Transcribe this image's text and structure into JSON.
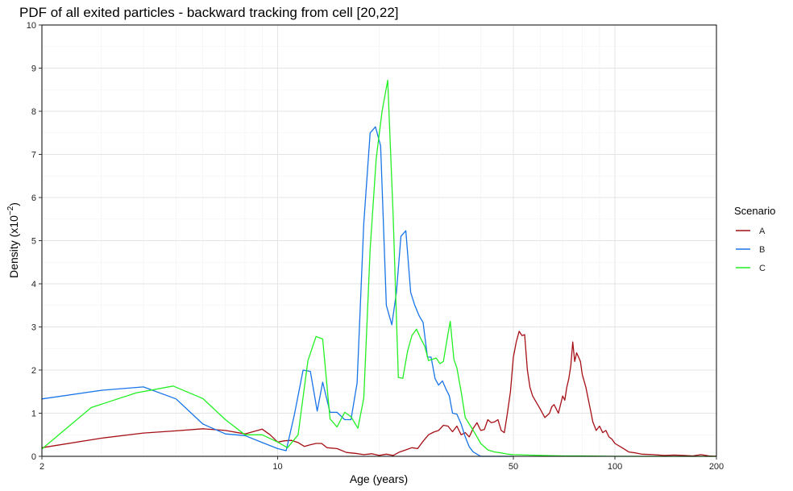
{
  "chart_data": {
    "type": "line",
    "title": "PDF of all exited particles - backward tracking from cell [20,22]",
    "xlabel": "Age (years)",
    "ylabel_main": "Density (x10",
    "ylabel_sup": "−2",
    "ylabel_end": ")",
    "x_scale": "log",
    "xlim": [
      2,
      200
    ],
    "ylim": [
      0,
      10
    ],
    "x_ticks": [
      2,
      10,
      50,
      100,
      200
    ],
    "x_minor": [
      3,
      4,
      5,
      6,
      7,
      8,
      9,
      20,
      30,
      40,
      60,
      70,
      80,
      90
    ],
    "y_ticks": [
      0,
      1,
      2,
      3,
      4,
      5,
      6,
      7,
      8,
      9,
      10
    ],
    "grid": true,
    "legend": {
      "title": "Scenario",
      "position": "right"
    },
    "series": [
      {
        "name": "A",
        "color": "#a50f15",
        "x": [
          2,
          3,
          4,
          5,
          6,
          7,
          8,
          9,
          9.5,
          10,
          10.5,
          11,
          11.5,
          12,
          12.5,
          13,
          13.5,
          14,
          15,
          16,
          17,
          18,
          19,
          20,
          21,
          22,
          23,
          24,
          25,
          26,
          27,
          28,
          29,
          30,
          31,
          32,
          33,
          34,
          35,
          36,
          37,
          38,
          39,
          40,
          41,
          42,
          43,
          44,
          45,
          46,
          47,
          48,
          49,
          50,
          51,
          52,
          53,
          54,
          55,
          56,
          57,
          58,
          59,
          60,
          62,
          64,
          65,
          66,
          68,
          70,
          71,
          72,
          73,
          74,
          75,
          76,
          77,
          78,
          79,
          80,
          82,
          84,
          85,
          86,
          88,
          90,
          92,
          94,
          96,
          98,
          100,
          105,
          110,
          115,
          120,
          130,
          140,
          150,
          160,
          170,
          180,
          190,
          200
        ],
        "y": [
          0.2,
          0.42,
          0.54,
          0.59,
          0.64,
          0.6,
          0.52,
          0.63,
          0.5,
          0.33,
          0.36,
          0.37,
          0.32,
          0.23,
          0.27,
          0.3,
          0.3,
          0.2,
          0.18,
          0.09,
          0.07,
          0.04,
          0.06,
          0.02,
          0.05,
          0.02,
          0.1,
          0.15,
          0.2,
          0.18,
          0.35,
          0.5,
          0.56,
          0.6,
          0.72,
          0.7,
          0.57,
          0.7,
          0.5,
          0.55,
          0.45,
          0.65,
          0.78,
          0.6,
          0.62,
          0.85,
          0.78,
          0.8,
          0.85,
          0.6,
          0.55,
          1.0,
          1.5,
          2.3,
          2.65,
          2.9,
          2.8,
          2.82,
          2.0,
          1.6,
          1.4,
          1.3,
          1.2,
          1.1,
          0.9,
          1.0,
          1.15,
          1.2,
          1.0,
          1.4,
          1.3,
          1.6,
          1.8,
          2.1,
          2.65,
          2.2,
          2.4,
          2.3,
          2.2,
          1.9,
          1.6,
          1.2,
          1.0,
          0.8,
          0.6,
          0.7,
          0.55,
          0.6,
          0.45,
          0.4,
          0.3,
          0.2,
          0.1,
          0.08,
          0.05,
          0.04,
          0.02,
          0.03,
          0.02,
          0.01,
          0.04,
          0.01,
          0.0
        ]
      },
      {
        "name": "B",
        "color": "#1874e8",
        "x": [
          2,
          3,
          4,
          5,
          6,
          7,
          8,
          9,
          10,
          10.6,
          11.2,
          11.9,
          12.5,
          13.1,
          13.6,
          14.3,
          15,
          15.8,
          16.5,
          17.2,
          18,
          18.8,
          19.5,
          20.2,
          21,
          21.8,
          22.5,
          23.2,
          24,
          24.8,
          25.5,
          26.3,
          27,
          27.8,
          28.5,
          29.3,
          30,
          30.8,
          31.6,
          32.3,
          33,
          34,
          35,
          36,
          37,
          38,
          39,
          40,
          41,
          42,
          43,
          44,
          45,
          46,
          47,
          48,
          49,
          50
        ],
        "y": [
          1.33,
          1.53,
          1.61,
          1.33,
          0.75,
          0.52,
          0.48,
          0.32,
          0.18,
          0.13,
          0.95,
          2.0,
          1.97,
          1.05,
          1.72,
          1.02,
          1.02,
          0.85,
          0.85,
          1.7,
          5.4,
          7.5,
          7.64,
          7.2,
          3.5,
          3.05,
          3.8,
          5.1,
          5.23,
          3.8,
          3.5,
          3.25,
          3.1,
          2.3,
          2.3,
          1.8,
          1.65,
          1.75,
          1.55,
          1.4,
          1.0,
          0.98,
          0.75,
          0.45,
          0.22,
          0.1,
          0.05,
          0.0,
          0.0,
          0.0,
          0.0,
          0.0,
          0.0,
          0.0,
          0.0,
          0.0,
          0.0,
          0.0
        ]
      },
      {
        "name": "C",
        "color": "#22f022",
        "x": [
          2,
          2.8,
          3.8,
          4.9,
          6,
          7,
          8,
          9,
          10,
          10.7,
          11.5,
          12.3,
          13,
          13.6,
          14.3,
          15,
          15.8,
          16.5,
          17.3,
          18,
          18.8,
          19.6,
          20.4,
          21.2,
          22,
          22.8,
          23.5,
          24.3,
          25,
          25.8,
          26.5,
          27.3,
          28,
          28.8,
          29.5,
          30.3,
          31,
          31.8,
          32.5,
          33.3,
          34,
          35,
          36,
          37,
          38,
          39,
          40,
          42,
          44,
          46,
          48,
          50,
          55,
          60,
          70,
          80,
          100,
          150,
          200
        ],
        "y": [
          0.17,
          1.13,
          1.47,
          1.63,
          1.34,
          0.85,
          0.5,
          0.5,
          0.33,
          0.2,
          0.5,
          2.22,
          2.78,
          2.72,
          0.87,
          0.68,
          1.02,
          0.92,
          0.65,
          1.35,
          4.8,
          6.9,
          8.0,
          8.72,
          5.6,
          1.83,
          1.81,
          2.45,
          2.8,
          2.95,
          2.75,
          2.55,
          2.22,
          2.25,
          2.28,
          2.15,
          2.2,
          2.72,
          3.13,
          2.25,
          2.05,
          1.5,
          0.9,
          0.75,
          0.6,
          0.45,
          0.3,
          0.15,
          0.1,
          0.08,
          0.05,
          0.04,
          0.03,
          0.02,
          0.01,
          0.01,
          0.0,
          0.0,
          0.0
        ]
      }
    ]
  }
}
